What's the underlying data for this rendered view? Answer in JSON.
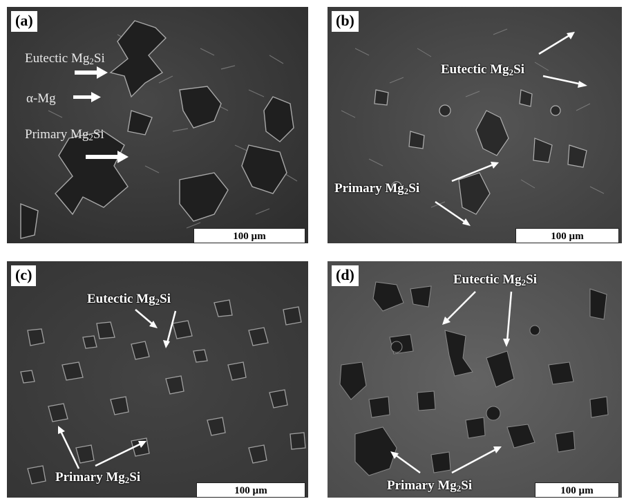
{
  "panels": [
    {
      "label": "(a)",
      "scale": "100 µm",
      "annotations": {
        "eutectic_base": "Eutectic Mg",
        "eutectic_sub": "2",
        "eutectic_tail": "Si",
        "alpha": "α-Mg",
        "primary_base": "Primary Mg",
        "primary_sub": "2",
        "primary_tail": "Si"
      }
    },
    {
      "label": "(b)",
      "scale": "100 µm",
      "annotations": {
        "eutectic_base": "Eutectic Mg",
        "eutectic_sub": "2",
        "eutectic_tail": "Si",
        "primary_base": "Primary Mg",
        "primary_sub": "2",
        "primary_tail": "Si"
      }
    },
    {
      "label": "(c)",
      "scale": "100 µm",
      "annotations": {
        "eutectic_base": "Eutectic Mg",
        "eutectic_sub": "2",
        "eutectic_tail": "Si",
        "primary_base": "Primary Mg",
        "primary_sub": "2",
        "primary_tail": "Si"
      }
    },
    {
      "label": "(d)",
      "scale": "100 µm",
      "annotations": {
        "eutectic_base": "Eutectic Mg",
        "eutectic_sub": "2",
        "eutectic_tail": "Si",
        "primary_base": "Primary Mg",
        "primary_sub": "2",
        "primary_tail": "Si"
      }
    }
  ],
  "colors": {
    "panel_a_bg": "#3a3a3a",
    "panel_b_bg": "#464646",
    "panel_c_bg": "#3d3d3d",
    "panel_d_bg": "#5a5a5a",
    "particle_dark": "#1c1c1c",
    "particle_edge": "#9a9a9a"
  }
}
